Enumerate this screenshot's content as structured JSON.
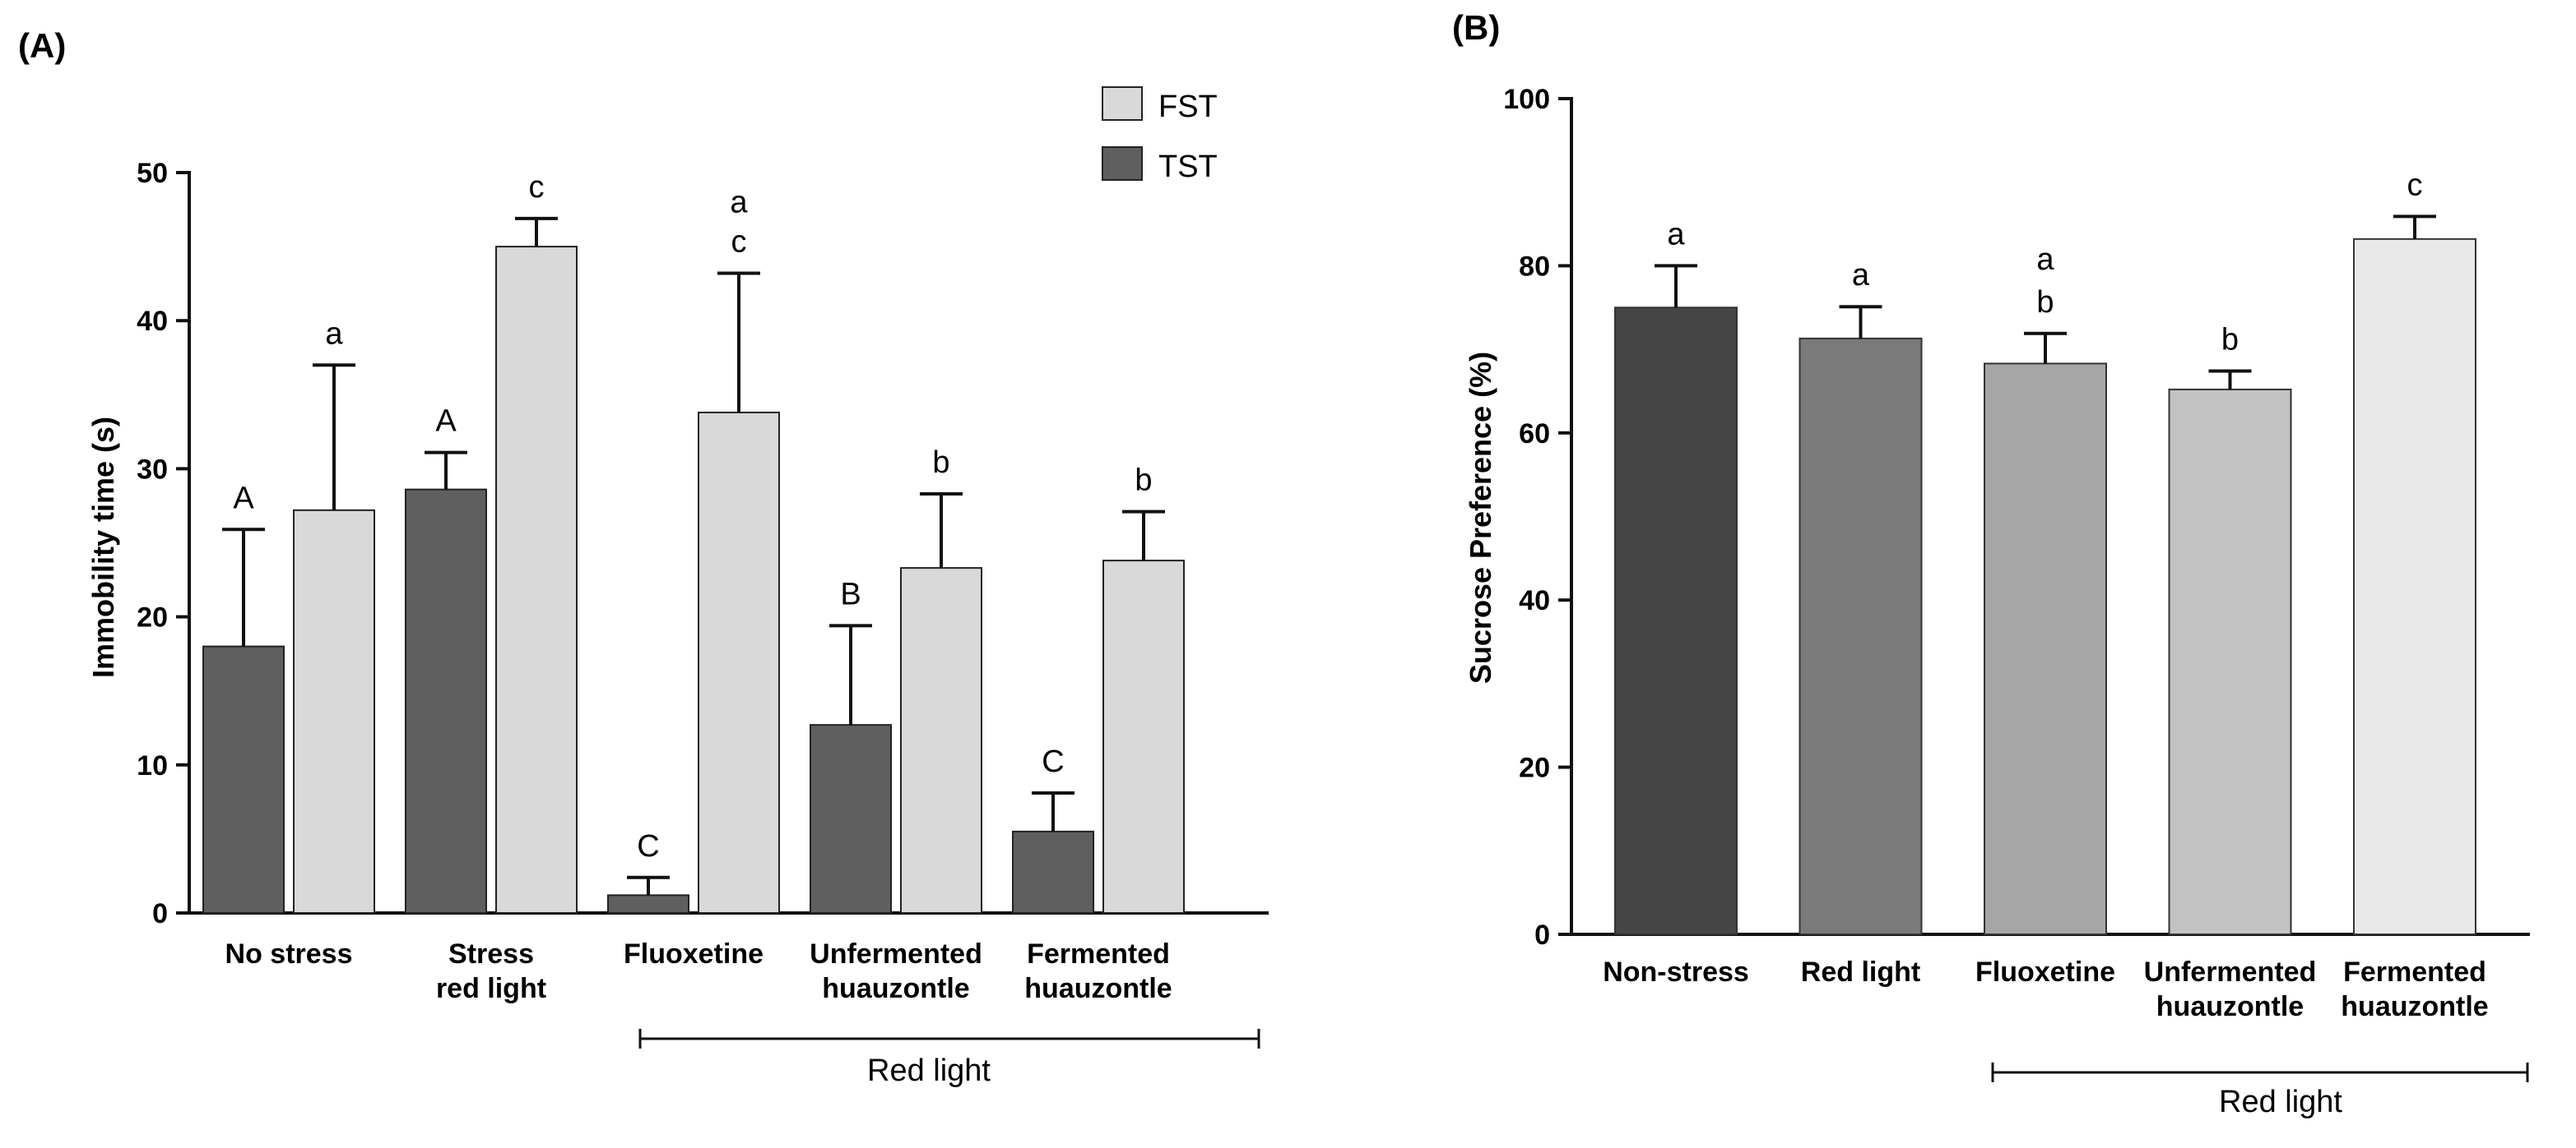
{
  "chart_data": [
    {
      "panel": "(A)",
      "type": "bar",
      "ylabel": "Immobility time (s)",
      "ylim": [
        0,
        50
      ],
      "yticks": [
        0,
        10,
        20,
        30,
        40,
        50
      ],
      "categories": [
        [
          "No stress"
        ],
        [
          "Stress",
          "red light"
        ],
        [
          "Fluoxetine"
        ],
        [
          "Unfermented",
          "huauzontle"
        ],
        [
          "Fermented",
          "huauzontle"
        ]
      ],
      "series": [
        {
          "name": "TST",
          "color": "#5f5f5f",
          "values": [
            18,
            28.6,
            1.2,
            12.7,
            5.5
          ],
          "errors": [
            7.9,
            2.5,
            1.2,
            6.7,
            2.6
          ],
          "letters": [
            "A",
            "A",
            "C",
            "B",
            "C"
          ]
        },
        {
          "name": "FST",
          "color": "#d9d9d9",
          "values": [
            27.2,
            45,
            33.8,
            23.3,
            23.8
          ],
          "errors": [
            9.8,
            1.9,
            9.4,
            5,
            3.3
          ],
          "letters": [
            "a",
            "c",
            "a\nc",
            "b",
            "b"
          ]
        }
      ],
      "legend": {
        "position": "top-right",
        "entries": [
          "FST",
          "TST"
        ]
      },
      "bracket": {
        "label": "Red light",
        "spans_categories": [
          2,
          4
        ]
      }
    },
    {
      "panel": "(B)",
      "type": "bar",
      "ylabel": "Sucrose Preference (%)",
      "ylim": [
        0,
        100
      ],
      "yticks": [
        0,
        20,
        40,
        60,
        80,
        100
      ],
      "categories": [
        [
          "Non-stress"
        ],
        [
          "Red light"
        ],
        [
          "Fluoxetine"
        ],
        [
          "Unfermented",
          "huauzontle"
        ],
        [
          "Fermented",
          "huauzontle"
        ]
      ],
      "values": [
        75,
        71.3,
        68.3,
        65.2,
        83.2
      ],
      "errors": [
        5,
        3.8,
        3.6,
        2.2,
        2.7
      ],
      "colors": [
        "#454545",
        "#7a7a7a",
        "#a6a6a6",
        "#c2c2c2",
        "#e8e8e8"
      ],
      "letters": [
        "a",
        "a",
        "a\nb",
        "b",
        "c"
      ],
      "bracket": {
        "label": "Red light",
        "spans_categories": [
          2,
          4
        ]
      }
    }
  ]
}
